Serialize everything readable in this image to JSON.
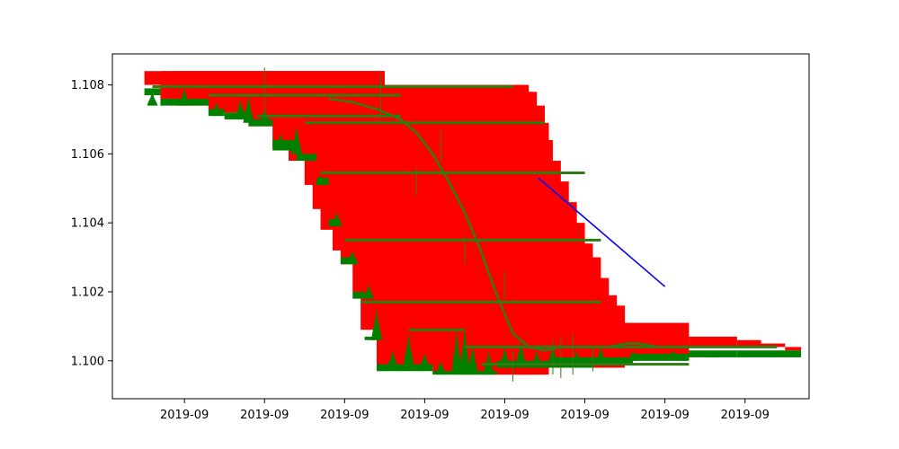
{
  "colors": {
    "background": "#ffffff",
    "axis": "#000000",
    "bear": "#ff0000",
    "bull": "#008000",
    "moving_average": "#2e7d12",
    "trend_line": "#0000ff"
  },
  "chart_data": {
    "type": "candlestick",
    "title": "",
    "xlabel": "",
    "ylabel": "",
    "grid": false,
    "legend": "none",
    "xlim": [
      0,
      87
    ],
    "ylim": [
      1.0989,
      1.1089
    ],
    "x_ticks": [
      {
        "x": 9,
        "label": "2019-09"
      },
      {
        "x": 19,
        "label": "2019-09"
      },
      {
        "x": 29,
        "label": "2019-09"
      },
      {
        "x": 39,
        "label": "2019-09"
      },
      {
        "x": 49,
        "label": "2019-09"
      },
      {
        "x": 59,
        "label": "2019-09"
      },
      {
        "x": 69,
        "label": "2019-09"
      },
      {
        "x": 79,
        "label": "2019-09"
      }
    ],
    "y_ticks": [
      {
        "y": 1.1,
        "label": "1.100"
      },
      {
        "y": 1.102,
        "label": "1.102"
      },
      {
        "y": 1.104,
        "label": "1.104"
      },
      {
        "y": 1.106,
        "label": "1.106"
      },
      {
        "y": 1.108,
        "label": "1.108"
      }
    ],
    "red_bars": [
      {
        "x0": 4.0,
        "x1": 34.0,
        "top": 1.1084,
        "bottom": 1.108
      },
      {
        "x0": 6.0,
        "x1": 34.0,
        "top": 1.1084,
        "bottom": 1.1076
      },
      {
        "x0": 8.0,
        "x1": 34.0,
        "top": 1.1084,
        "bottom": 1.1074
      },
      {
        "x0": 12.0,
        "x1": 36.0,
        "top": 1.108,
        "bottom": 1.1072
      },
      {
        "x0": 17.0,
        "x1": 36.0,
        "top": 1.108,
        "bottom": 1.1068
      },
      {
        "x0": 20.0,
        "x1": 36.0,
        "top": 1.108,
        "bottom": 1.1062
      },
      {
        "x0": 22.0,
        "x1": 44.0,
        "top": 1.108,
        "bottom": 1.1058
      },
      {
        "x0": 24.0,
        "x1": 44.0,
        "top": 1.108,
        "bottom": 1.1051
      },
      {
        "x0": 25.0,
        "x1": 50.0,
        "top": 1.108,
        "bottom": 1.1044
      },
      {
        "x0": 26.0,
        "x1": 50.0,
        "top": 1.108,
        "bottom": 1.1038
      },
      {
        "x0": 27.5,
        "x1": 50.0,
        "top": 1.108,
        "bottom": 1.1032
      },
      {
        "x0": 28.5,
        "x1": 51.0,
        "top": 1.108,
        "bottom": 1.1028
      },
      {
        "x0": 30.0,
        "x1": 51.0,
        "top": 1.108,
        "bottom": 1.102
      },
      {
        "x0": 31.0,
        "x1": 51.5,
        "top": 1.108,
        "bottom": 1.1009
      },
      {
        "x0": 33.0,
        "x1": 52.0,
        "top": 1.108,
        "bottom": 1.0998
      },
      {
        "x0": 40.0,
        "x1": 53.0,
        "top": 1.1078,
        "bottom": 1.0996
      },
      {
        "x0": 45.0,
        "x1": 54.0,
        "top": 1.1074,
        "bottom": 1.0996
      },
      {
        "x0": 50.0,
        "x1": 54.5,
        "top": 1.1069,
        "bottom": 1.0996
      },
      {
        "x0": 50.0,
        "x1": 55.0,
        "top": 1.1064,
        "bottom": 1.0998
      },
      {
        "x0": 50.0,
        "x1": 56.0,
        "top": 1.1058,
        "bottom": 1.0998
      },
      {
        "x0": 50.0,
        "x1": 57.0,
        "top": 1.1052,
        "bottom": 1.0998
      },
      {
        "x0": 50.0,
        "x1": 58.0,
        "top": 1.1046,
        "bottom": 1.0998
      },
      {
        "x0": 50.0,
        "x1": 59.0,
        "top": 1.104,
        "bottom": 1.0998
      },
      {
        "x0": 50.0,
        "x1": 60.0,
        "top": 1.1034,
        "bottom": 1.0998
      },
      {
        "x0": 50.0,
        "x1": 61.0,
        "top": 1.103,
        "bottom": 1.0998
      },
      {
        "x0": 50.0,
        "x1": 62.0,
        "top": 1.1024,
        "bottom": 1.0998
      },
      {
        "x0": 50.0,
        "x1": 63.0,
        "top": 1.1019,
        "bottom": 1.0998
      },
      {
        "x0": 50.0,
        "x1": 64.0,
        "top": 1.1016,
        "bottom": 1.0998
      },
      {
        "x0": 50.0,
        "x1": 65.0,
        "top": 1.1011,
        "bottom": 1.0999
      },
      {
        "x0": 50.0,
        "x1": 72.0,
        "top": 1.1011,
        "bottom": 1.1
      },
      {
        "x0": 72.0,
        "x1": 78.0,
        "top": 1.1007,
        "bottom": 1.1004
      },
      {
        "x0": 78.0,
        "x1": 81.0,
        "top": 1.1006,
        "bottom": 1.1004
      },
      {
        "x0": 81.0,
        "x1": 84.0,
        "top": 1.1005,
        "bottom": 1.1004
      },
      {
        "x0": 84.0,
        "x1": 86.0,
        "top": 1.1004,
        "bottom": 1.1003
      }
    ],
    "green_bars": [
      {
        "x0": 4.0,
        "x1": 6.0,
        "top": 1.1079,
        "bottom": 1.1077
      },
      {
        "x0": 6.0,
        "x1": 9.0,
        "top": 1.1076,
        "bottom": 1.1074
      },
      {
        "x0": 9.5,
        "x1": 12.0,
        "top": 1.1076,
        "bottom": 1.1074
      },
      {
        "x0": 12.0,
        "x1": 14.0,
        "top": 1.1073,
        "bottom": 1.1071
      },
      {
        "x0": 14.0,
        "x1": 17.0,
        "top": 1.1072,
        "bottom": 1.107
      },
      {
        "x0": 17.0,
        "x1": 20.0,
        "top": 1.107,
        "bottom": 1.1068
      },
      {
        "x0": 20.0,
        "x1": 23.0,
        "top": 1.1064,
        "bottom": 1.1061
      },
      {
        "x0": 23.0,
        "x1": 25.5,
        "top": 1.106,
        "bottom": 1.1058
      },
      {
        "x0": 25.5,
        "x1": 27.0,
        "top": 1.1053,
        "bottom": 1.1051
      },
      {
        "x0": 27.0,
        "x1": 28.5,
        "top": 1.1041,
        "bottom": 1.1039
      },
      {
        "x0": 28.5,
        "x1": 30.0,
        "top": 1.103,
        "bottom": 1.1028
      },
      {
        "x0": 30.0,
        "x1": 31.5,
        "top": 1.102,
        "bottom": 1.1018
      },
      {
        "x0": 31.5,
        "x1": 33.0,
        "top": 1.1007,
        "bottom": 1.1006
      },
      {
        "x0": 33.0,
        "x1": 40.0,
        "top": 1.0999,
        "bottom": 1.0997
      },
      {
        "x0": 40.0,
        "x1": 48.0,
        "top": 1.0997,
        "bottom": 1.0996
      },
      {
        "x0": 48.0,
        "x1": 60.0,
        "top": 1.1,
        "bottom": 1.0998
      },
      {
        "x0": 55.0,
        "x1": 65.0,
        "top": 1.1001,
        "bottom": 1.0999
      },
      {
        "x0": 65.0,
        "x1": 72.0,
        "top": 1.1002,
        "bottom": 1.1
      },
      {
        "x0": 72.0,
        "x1": 78.0,
        "top": 1.1003,
        "bottom": 1.1001
      },
      {
        "x0": 78.0,
        "x1": 86.0,
        "top": 1.1003,
        "bottom": 1.1001
      }
    ],
    "volume_spikes": [
      {
        "x": 5,
        "base": 1.1074,
        "top": 1.1078
      },
      {
        "x": 9,
        "base": 1.1074,
        "top": 1.1079
      },
      {
        "x": 13,
        "base": 1.1071,
        "top": 1.1075
      },
      {
        "x": 16,
        "base": 1.107,
        "top": 1.1076
      },
      {
        "x": 17,
        "base": 1.1069,
        "top": 1.1077
      },
      {
        "x": 19,
        "base": 1.1069,
        "top": 1.1073
      },
      {
        "x": 21,
        "base": 1.1061,
        "top": 1.1066
      },
      {
        "x": 23,
        "base": 1.106,
        "top": 1.1068
      },
      {
        "x": 26,
        "base": 1.1051,
        "top": 1.1054
      },
      {
        "x": 28,
        "base": 1.1039,
        "top": 1.1043
      },
      {
        "x": 30,
        "base": 1.1028,
        "top": 1.1032
      },
      {
        "x": 32,
        "base": 1.1018,
        "top": 1.1022
      },
      {
        "x": 33,
        "base": 1.1006,
        "top": 1.1015
      },
      {
        "x": 35,
        "base": 1.0998,
        "top": 1.1003
      },
      {
        "x": 37,
        "base": 1.0998,
        "top": 1.1008
      },
      {
        "x": 39,
        "base": 1.0998,
        "top": 1.1002
      },
      {
        "x": 41,
        "base": 1.0996,
        "top": 1.1
      },
      {
        "x": 43,
        "base": 1.0996,
        "top": 1.1009
      },
      {
        "x": 44,
        "base": 1.0996,
        "top": 1.101
      },
      {
        "x": 45,
        "base": 1.0996,
        "top": 1.1005
      },
      {
        "x": 47,
        "base": 1.0996,
        "top": 1.1003
      },
      {
        "x": 49,
        "base": 1.0998,
        "top": 1.1004
      },
      {
        "x": 51,
        "base": 1.0998,
        "top": 1.1006
      },
      {
        "x": 53,
        "base": 1.0998,
        "top": 1.1003
      },
      {
        "x": 55,
        "base": 1.0998,
        "top": 1.1005
      },
      {
        "x": 58,
        "base": 1.0998,
        "top": 1.1003
      },
      {
        "x": 61,
        "base": 1.0999,
        "top": 1.1004
      },
      {
        "x": 65,
        "base": 1.1,
        "top": 1.1003
      },
      {
        "x": 70,
        "base": 1.1001,
        "top": 1.1003
      },
      {
        "x": 75,
        "base": 1.1001,
        "top": 1.1003
      }
    ],
    "level_lines": [
      {
        "x0": 5.0,
        "x1": 50.0,
        "y": 1.10795
      },
      {
        "x0": 12.0,
        "x1": 36.0,
        "y": 1.1077
      },
      {
        "x0": 18.0,
        "x1": 36.0,
        "y": 1.1071
      },
      {
        "x0": 24.0,
        "x1": 54.0,
        "y": 1.1069
      },
      {
        "x0": 26.0,
        "x1": 59.0,
        "y": 1.10545
      },
      {
        "x0": 29.0,
        "x1": 61.0,
        "y": 1.1035
      },
      {
        "x0": 31.0,
        "x1": 61.0,
        "y": 1.1017
      },
      {
        "x0": 37.0,
        "x1": 44.0,
        "y": 1.1009
      },
      {
        "x0": 44.0,
        "x1": 83.0,
        "y": 1.1004
      },
      {
        "x0": 46.0,
        "x1": 72.0,
        "y": 1.0999
      }
    ],
    "wicks": [
      {
        "x": 19.0,
        "low": 1.1069,
        "high": 1.1085
      },
      {
        "x": 33.5,
        "low": 1.107,
        "high": 1.1083
      },
      {
        "x": 38.0,
        "low": 1.1048,
        "high": 1.1056
      },
      {
        "x": 41.0,
        "low": 1.1058,
        "high": 1.1067
      },
      {
        "x": 44.0,
        "low": 1.1028,
        "high": 1.1036
      },
      {
        "x": 49.0,
        "low": 1.1018,
        "high": 1.1026
      },
      {
        "x": 50.0,
        "low": 1.0994,
        "high": 1.1003
      },
      {
        "x": 55.0,
        "low": 1.0996,
        "high": 1.1006
      },
      {
        "x": 56.0,
        "low": 1.0995,
        "high": 1.1007
      },
      {
        "x": 57.5,
        "low": 1.0996,
        "high": 1.1008
      },
      {
        "x": 60.0,
        "low": 1.0997,
        "high": 1.1004
      }
    ],
    "moving_average": {
      "name": "",
      "x": [
        27,
        30,
        33,
        36,
        38,
        40,
        42,
        44,
        46,
        48,
        50,
        52,
        54,
        56,
        58,
        60,
        62,
        64,
        66,
        68,
        70
      ],
      "y": [
        1.1076,
        1.1075,
        1.1073,
        1.107,
        1.1066,
        1.106,
        1.1052,
        1.1043,
        1.1032,
        1.1019,
        1.1008,
        1.1004,
        1.1003,
        1.1004,
        1.1004,
        1.1004,
        1.1004,
        1.1005,
        1.1005,
        1.1004,
        1.1004
      ]
    },
    "trend_line": {
      "name": "",
      "x": [
        53.2,
        69.0
      ],
      "y": [
        1.1053,
        1.10215
      ]
    }
  }
}
